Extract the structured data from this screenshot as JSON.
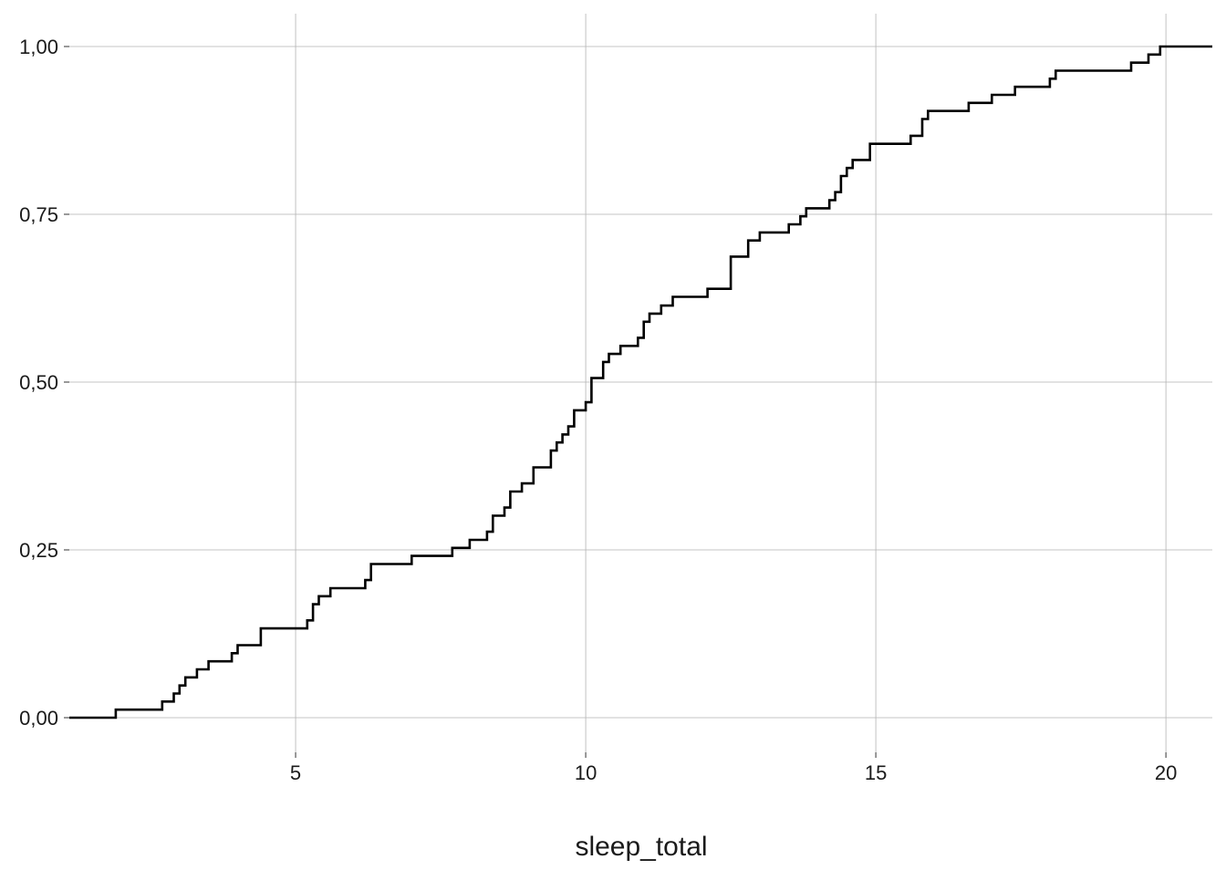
{
  "chart_data": {
    "type": "line",
    "step": true,
    "title": "",
    "xlabel": "sleep_total",
    "ylabel": "",
    "xlim": [
      1.1,
      20.8
    ],
    "ylim": [
      0,
      1
    ],
    "x_ticks": [
      5,
      10,
      15,
      20
    ],
    "x_tick_labels": [
      "5",
      "10",
      "15",
      "20"
    ],
    "y_ticks": [
      0,
      0.25,
      0.5,
      0.75,
      1
    ],
    "y_tick_labels": [
      "0,00",
      "0,25",
      "0,50",
      "0,75",
      "1,00"
    ],
    "grid": true,
    "legend": "none",
    "line_color": "#000000",
    "series": [
      {
        "x": [
          1.1,
          1.9,
          2.7,
          2.9,
          3.0,
          3.1,
          3.3,
          3.5,
          3.9,
          4.0,
          4.4,
          5.2,
          5.3,
          5.4,
          5.6,
          6.2,
          6.3,
          7.0,
          7.7,
          8.0,
          8.3,
          8.4,
          8.6,
          8.7,
          8.9,
          9.1,
          9.4,
          9.5,
          9.6,
          9.7,
          9.8,
          10.0,
          10.1,
          10.3,
          10.4,
          10.6,
          10.9,
          11.0,
          11.1,
          11.3,
          11.5,
          12.1,
          12.5,
          12.8,
          13.0,
          13.5,
          13.7,
          13.8,
          14.2,
          14.3,
          14.4,
          14.5,
          14.6,
          14.9,
          15.6,
          15.8,
          15.9,
          16.6,
          17.0,
          17.4,
          18.0,
          18.1,
          19.4,
          19.7,
          19.9,
          20.8
        ],
        "y": [
          0.0,
          0.012,
          0.024,
          0.036,
          0.048,
          0.06,
          0.072,
          0.084,
          0.096,
          0.108,
          0.133,
          0.145,
          0.169,
          0.181,
          0.193,
          0.205,
          0.229,
          0.241,
          0.253,
          0.265,
          0.277,
          0.301,
          0.313,
          0.337,
          0.349,
          0.373,
          0.398,
          0.41,
          0.422,
          0.434,
          0.458,
          0.47,
          0.506,
          0.53,
          0.542,
          0.554,
          0.566,
          0.59,
          0.602,
          0.614,
          0.627,
          0.639,
          0.687,
          0.711,
          0.723,
          0.735,
          0.747,
          0.759,
          0.771,
          0.783,
          0.807,
          0.819,
          0.831,
          0.855,
          0.867,
          0.892,
          0.904,
          0.916,
          0.928,
          0.94,
          0.952,
          0.964,
          0.976,
          0.988,
          1.0,
          1.0
        ]
      }
    ]
  }
}
